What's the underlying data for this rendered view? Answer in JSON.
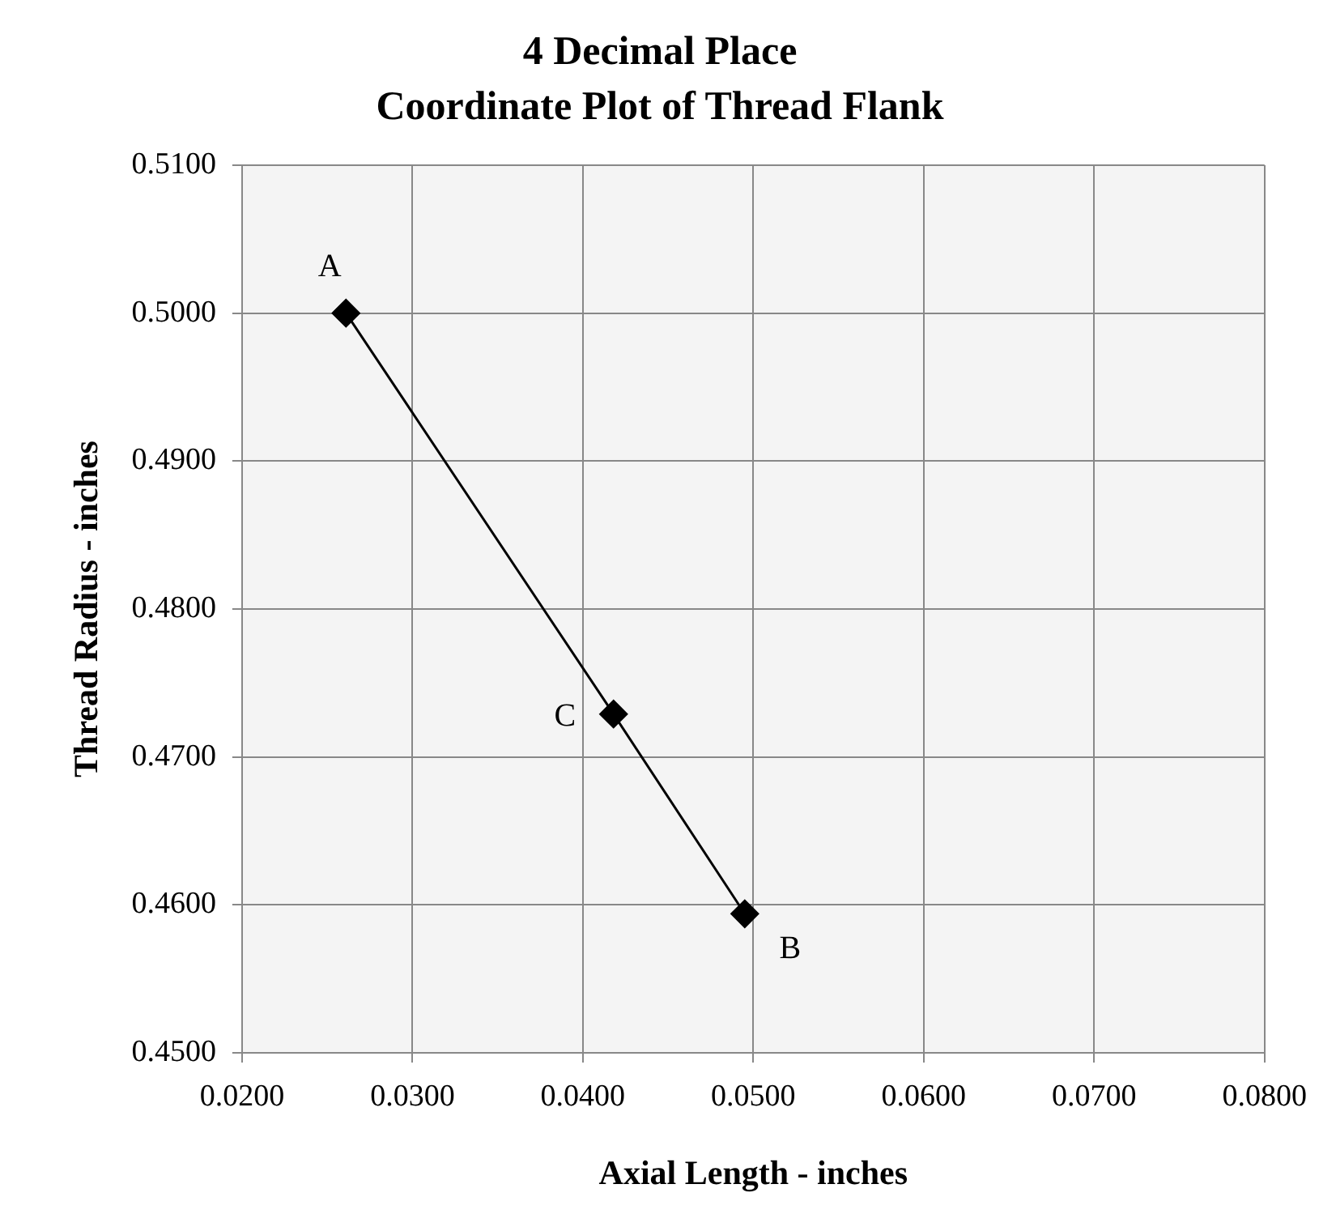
{
  "chart_data": {
    "type": "line",
    "title": "4 Decimal Place",
    "subtitle": "Coordinate Plot of Thread Flank",
    "xlabel": "Axial Length - inches",
    "ylabel": "Thread Radius - inches",
    "series": [
      {
        "color": "#000000",
        "x": [
          0.0261,
          0.0418,
          0.0495
        ],
        "values": [
          0.5,
          0.4729,
          0.4594
        ]
      }
    ],
    "xlim": [
      0.02,
      0.08
    ],
    "xticks": [
      {
        "value": 0.02,
        "label": "0.0200"
      },
      {
        "value": 0.03,
        "label": "0.0300"
      },
      {
        "value": 0.04,
        "label": "0.0400"
      },
      {
        "value": 0.05,
        "label": "0.0500"
      },
      {
        "value": 0.06,
        "label": "0.0600"
      },
      {
        "value": 0.07,
        "label": "0.0700"
      },
      {
        "value": 0.08,
        "label": "0.0800"
      }
    ],
    "ylim": [
      0.45,
      0.51
    ],
    "yticks": [
      {
        "value": 0.45,
        "label": "0.4500"
      },
      {
        "value": 0.46,
        "label": "0.4600"
      },
      {
        "value": 0.47,
        "label": "0.4700"
      },
      {
        "value": 0.48,
        "label": "0.4800"
      },
      {
        "value": 0.49,
        "label": "0.4900"
      },
      {
        "value": 0.5,
        "label": "0.5000"
      },
      {
        "value": 0.51,
        "label": "0.5100"
      }
    ],
    "annotations": [
      {
        "text": "A",
        "x": 0.0261,
        "y": 0.5
      },
      {
        "text": "C",
        "x": 0.0418,
        "y": 0.4729
      },
      {
        "text": "B",
        "x": 0.0495,
        "y": 0.4594
      }
    ],
    "grid": true,
    "legend": false,
    "marker": "diamond",
    "line_style": "solid"
  }
}
